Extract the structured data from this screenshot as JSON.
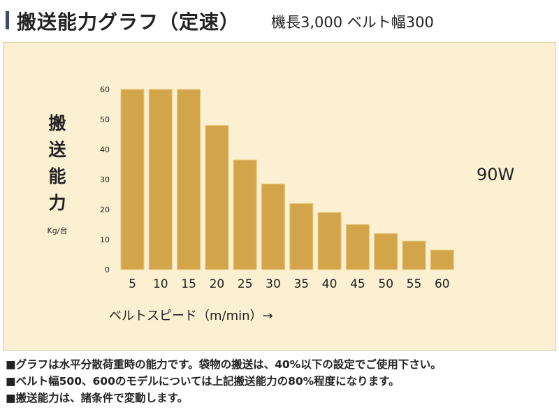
{
  "header": {
    "title": "搬送能力グラフ（定速）",
    "subtitle": "機長3,000 ベルト幅300",
    "accent_color": "#3b4a73"
  },
  "colors": {
    "panel_bg": "#fbf0d1",
    "bar": "#d3a54a",
    "bar_edge": "#e8c77d",
    "text": "#222222"
  },
  "chart_data": {
    "type": "bar",
    "categories": [
      "5",
      "10",
      "15",
      "20",
      "25",
      "30",
      "35",
      "40",
      "45",
      "50",
      "55",
      "60"
    ],
    "values": [
      60,
      60,
      60,
      48,
      36.5,
      28.5,
      22,
      19,
      15,
      12,
      9.5,
      6.5
    ],
    "ylabel_chars": [
      "搬",
      "送",
      "能",
      "力"
    ],
    "yunit": "Kg/台",
    "xlabel": "ベルトスピード（m/min）→",
    "yticks": [
      0,
      10,
      20,
      30,
      40,
      50,
      60
    ],
    "ylim": [
      0,
      60
    ],
    "grid": false,
    "annotation": "90W"
  },
  "notes": [
    "■グラフは水平分散荷重時の能力です。袋物の搬送は、40%以下の設定でご使用下さい。",
    "■ベルト幅500、600のモデルについては上記搬送能力の80%程度になります。",
    "■搬送能力は、諸条件で変動します。"
  ]
}
